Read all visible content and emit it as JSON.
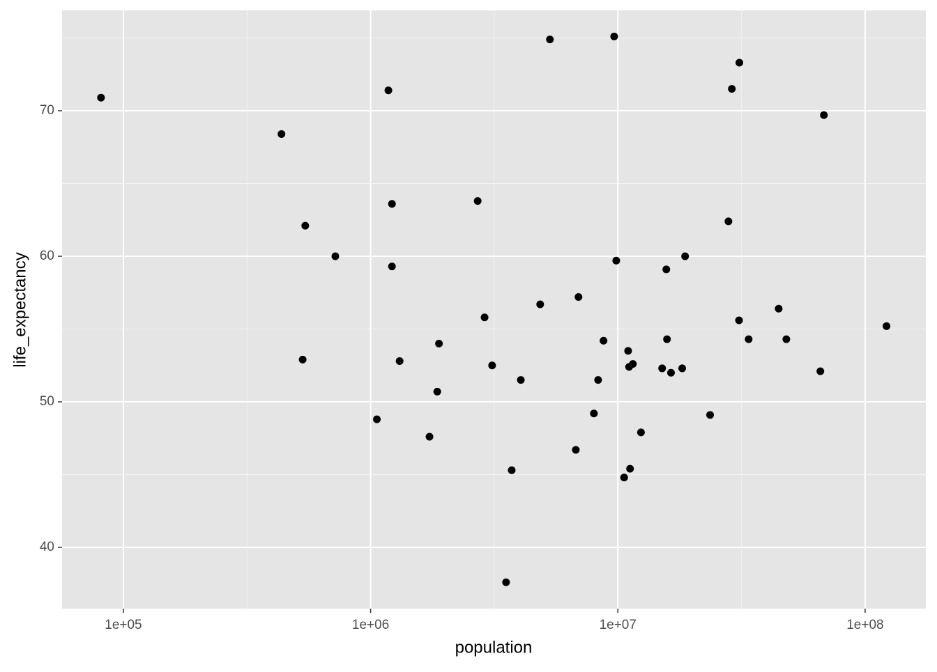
{
  "chart_data": {
    "type": "scatter",
    "x_label": "population",
    "y_label": "life_expectancy",
    "x_scale": "log",
    "grid": true,
    "background": "#e5e5e5",
    "color": "#000000",
    "xlim": [
      56500,
      176000000
    ],
    "ylim": [
      35.79,
      76.89
    ],
    "xticks": [
      {
        "value": 100000,
        "label": "1e+05"
      },
      {
        "value": 1000000,
        "label": "1e+06"
      },
      {
        "value": 10000000,
        "label": "1e+07"
      },
      {
        "value": 100000000,
        "label": "1e+08"
      }
    ],
    "yticks": [
      40,
      50,
      60,
      70
    ],
    "x": [
      81200,
      436000,
      544000,
      531000,
      720000,
      1060000,
      1180000,
      1220000,
      1220000,
      1310000,
      1730000,
      1860000,
      1890000,
      2710000,
      2890000,
      3100000,
      3530000,
      3720000,
      4050000,
      4850000,
      5310000,
      6760000,
      6930000,
      8000000,
      8320000,
      8750000,
      9660000,
      9850000,
      10600000,
      11000000,
      11100000,
      11200000,
      11500000,
      12400000,
      15100000,
      15700000,
      15800000,
      16400000,
      18200000,
      18700000,
      23600000,
      28000000,
      28900000,
      30900000,
      31000000,
      33800000,
      44700000,
      48000000,
      65900000,
      68100000,
      122000000
    ],
    "values": [
      70.9,
      68.4,
      62.1,
      52.9,
      60.0,
      48.8,
      71.4,
      63.6,
      59.3,
      52.8,
      47.6,
      50.7,
      54.0,
      63.8,
      55.8,
      52.5,
      37.6,
      45.3,
      51.5,
      56.7,
      74.9,
      46.7,
      57.2,
      49.2,
      51.5,
      54.2,
      75.1,
      59.7,
      44.8,
      53.5,
      52.4,
      45.4,
      52.6,
      47.9,
      52.3,
      59.1,
      54.3,
      52.0,
      52.3,
      60.0,
      49.1,
      62.4,
      71.5,
      55.6,
      73.3,
      54.3,
      56.4,
      54.3,
      52.1,
      69.7,
      55.2
    ]
  }
}
